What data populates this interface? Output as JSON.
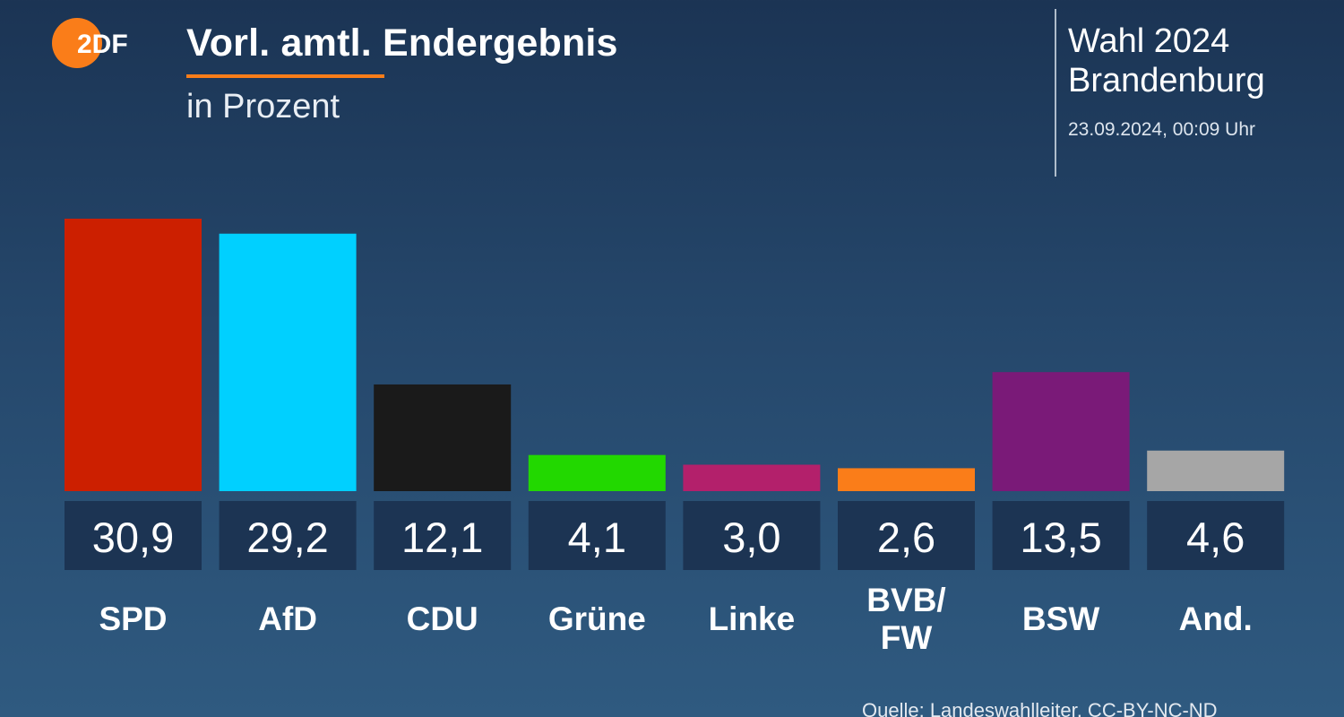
{
  "header": {
    "logo_text": "2DF",
    "title": "Vorl. amtl. Endergebnis",
    "subtitle": "in Prozent",
    "election_line1": "Wahl 2024",
    "election_line2": "Brandenburg",
    "timestamp": "23.09.2024, 00:09 Uhr"
  },
  "colors": {
    "accent": "#fa7d19",
    "value_box": "#1c3453"
  },
  "chart_data": {
    "type": "bar",
    "title": "Vorl. amtl. Endergebnis",
    "subtitle": "in Prozent",
    "xlabel": "",
    "ylabel": "",
    "grid": false,
    "ylim": [
      0,
      30.9
    ],
    "categories": [
      "SPD",
      "AfD",
      "CDU",
      "Grüne",
      "Linke",
      "BVB/\nFW",
      "BSW",
      "And."
    ],
    "values": [
      30.9,
      29.2,
      12.1,
      4.1,
      3.0,
      2.6,
      13.5,
      4.6
    ],
    "value_labels": [
      "30,9",
      "29,2",
      "12,1",
      "4,1",
      "3,0",
      "2,6",
      "13,5",
      "4,6"
    ],
    "colors": [
      "#cc1f00",
      "#00d0ff",
      "#1a1a1a",
      "#22d800",
      "#b3206b",
      "#fa7d19",
      "#7a1a78",
      "#a6a6a6"
    ]
  },
  "footer": {
    "source": "Quelle: Landeswahlleiter, CC-BY-NC-ND"
  }
}
